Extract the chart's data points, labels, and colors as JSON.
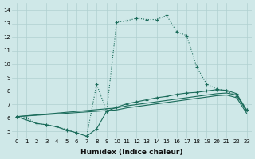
{
  "background_color": "#cfe8e8",
  "grid_color": "#b0d0d0",
  "line_color": "#1a6b5a",
  "series1_x": [
    0,
    1,
    2,
    3,
    4,
    5,
    6,
    7,
    8,
    9,
    10,
    11,
    12,
    13,
    14,
    15,
    16,
    17,
    18,
    19,
    20,
    21,
    22,
    23
  ],
  "series1_y": [
    6.1,
    6.0,
    5.6,
    5.5,
    5.35,
    5.15,
    4.9,
    4.65,
    8.5,
    6.5,
    13.1,
    13.2,
    13.4,
    13.3,
    13.3,
    13.6,
    12.4,
    12.1,
    9.8,
    8.5,
    8.15,
    8.0,
    7.6,
    6.6
  ],
  "series2_x": [
    0,
    2,
    3,
    4,
    5,
    6,
    7,
    8,
    9,
    10,
    11,
    12,
    13,
    14,
    15,
    16,
    17,
    18,
    19,
    20,
    21,
    22,
    23
  ],
  "series2_y": [
    6.1,
    5.6,
    5.5,
    5.35,
    5.1,
    4.9,
    4.65,
    5.2,
    6.5,
    6.8,
    7.05,
    7.2,
    7.35,
    7.5,
    7.6,
    7.75,
    7.85,
    7.9,
    8.0,
    8.1,
    8.05,
    7.8,
    6.6
  ],
  "series3_x": [
    0,
    10,
    11,
    12,
    13,
    14,
    15,
    16,
    17,
    18,
    19,
    20,
    21,
    22,
    23
  ],
  "series3_y": [
    6.1,
    6.75,
    6.9,
    7.0,
    7.1,
    7.2,
    7.3,
    7.4,
    7.5,
    7.6,
    7.7,
    7.8,
    7.85,
    7.7,
    6.5
  ],
  "series4_x": [
    0,
    10,
    11,
    12,
    13,
    14,
    15,
    16,
    17,
    18,
    19,
    20,
    21,
    22,
    23
  ],
  "series4_y": [
    6.1,
    6.6,
    6.75,
    6.85,
    6.95,
    7.05,
    7.15,
    7.25,
    7.35,
    7.45,
    7.55,
    7.65,
    7.7,
    7.5,
    6.35
  ],
  "xlabel": "Humidex (Indice chaleur)",
  "xlim": [
    -0.5,
    23.5
  ],
  "ylim": [
    4.5,
    14.5
  ],
  "xticks": [
    0,
    1,
    2,
    3,
    4,
    5,
    6,
    7,
    8,
    9,
    10,
    11,
    12,
    13,
    14,
    15,
    16,
    17,
    18,
    19,
    20,
    21,
    22,
    23
  ],
  "yticks": [
    5,
    6,
    7,
    8,
    9,
    10,
    11,
    12,
    13,
    14
  ],
  "tick_fontsize": 5.0,
  "xlabel_fontsize": 6.5
}
